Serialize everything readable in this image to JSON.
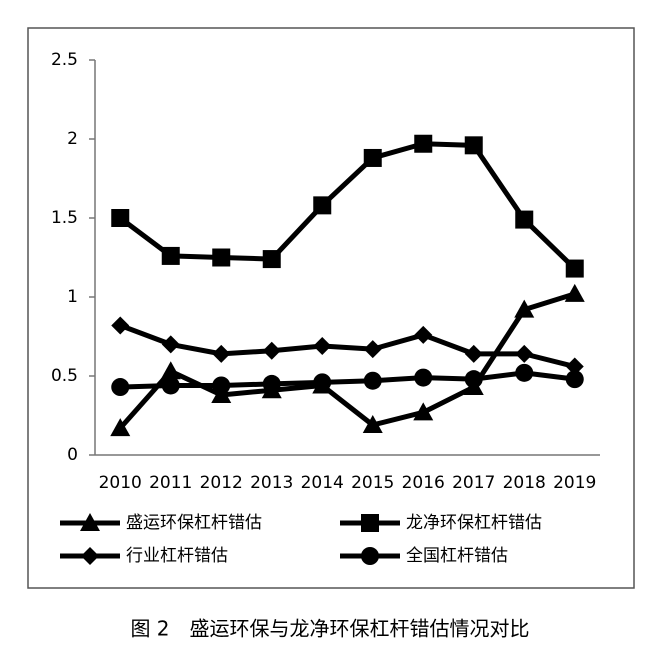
{
  "chart_data": {
    "type": "line",
    "caption": "图 2　盛运环保与龙净环保杠杆错估情况对比",
    "categories": [
      "2010",
      "2011",
      "2012",
      "2013",
      "2014",
      "2015",
      "2016",
      "2017",
      "2018",
      "2019"
    ],
    "series": [
      {
        "name": "盛运环保杠杆错估",
        "color": "#000000",
        "marker": "triangle",
        "values": [
          0.17,
          0.53,
          0.38,
          0.41,
          0.44,
          0.19,
          0.27,
          0.43,
          0.92,
          1.02
        ]
      },
      {
        "name": "龙净环保杠杆错估",
        "color": "#000000",
        "marker": "square",
        "values": [
          1.5,
          1.26,
          1.25,
          1.24,
          1.58,
          1.88,
          1.97,
          1.96,
          1.49,
          1.18
        ]
      },
      {
        "name": "行业杠杆错估",
        "color": "#000000",
        "marker": "diamond",
        "values": [
          0.82,
          0.7,
          0.64,
          0.66,
          0.69,
          0.67,
          0.76,
          0.64,
          0.64,
          0.56
        ]
      },
      {
        "name": "全国杠杆错估",
        "color": "#000000",
        "marker": "circle",
        "values": [
          0.43,
          0.44,
          0.44,
          0.45,
          0.46,
          0.47,
          0.49,
          0.48,
          0.52,
          0.48
        ]
      }
    ],
    "ylim": [
      0,
      2.5
    ],
    "yticks": [
      0,
      0.5,
      1,
      1.5,
      2,
      2.5
    ],
    "grid": false
  }
}
